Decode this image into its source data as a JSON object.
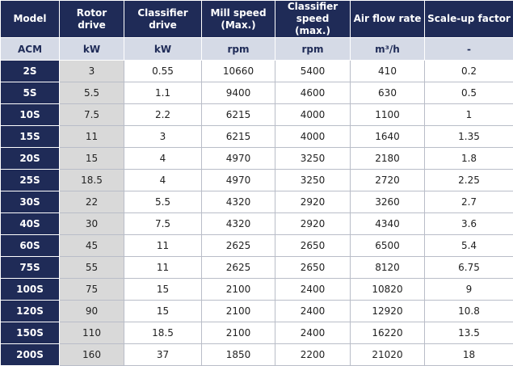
{
  "table": {
    "headers": [
      "Model",
      "Rotor drive",
      "Classifier drive",
      "Mill speed (Max.)",
      "Classifier speed (max.)",
      "Air flow rate",
      "Scale-up factor"
    ],
    "units": [
      "ACM",
      "kW",
      "kW",
      "rpm",
      "rpm",
      "m³/h",
      "-"
    ],
    "rows": [
      [
        "2S",
        "3",
        "0.55",
        "10660",
        "5400",
        "410",
        "0.2"
      ],
      [
        "5S",
        "5.5",
        "1.1",
        "9400",
        "4600",
        "630",
        "0.5"
      ],
      [
        "10S",
        "7.5",
        "2.2",
        "6215",
        "4000",
        "1100",
        "1"
      ],
      [
        "15S",
        "11",
        "3",
        "6215",
        "4000",
        "1640",
        "1.35"
      ],
      [
        "20S",
        "15",
        "4",
        "4970",
        "3250",
        "2180",
        "1.8"
      ],
      [
        "25S",
        "18.5",
        "4",
        "4970",
        "3250",
        "2720",
        "2.25"
      ],
      [
        "30S",
        "22",
        "5.5",
        "4320",
        "2920",
        "3260",
        "2.7"
      ],
      [
        "40S",
        "30",
        "7.5",
        "4320",
        "2920",
        "4340",
        "3.6"
      ],
      [
        "60S",
        "45",
        "11",
        "2625",
        "2650",
        "6500",
        "5.4"
      ],
      [
        "75S",
        "55",
        "11",
        "2625",
        "2650",
        "8120",
        "6.75"
      ],
      [
        "100S",
        "75",
        "15",
        "2100",
        "2400",
        "10820",
        "9"
      ],
      [
        "120S",
        "90",
        "15",
        "2100",
        "2400",
        "12920",
        "10.8"
      ],
      [
        "150S",
        "110",
        "18.5",
        "2100",
        "2400",
        "16220",
        "13.5"
      ],
      [
        "200S",
        "160",
        "37",
        "1850",
        "2200",
        "21020",
        "18"
      ]
    ]
  }
}
